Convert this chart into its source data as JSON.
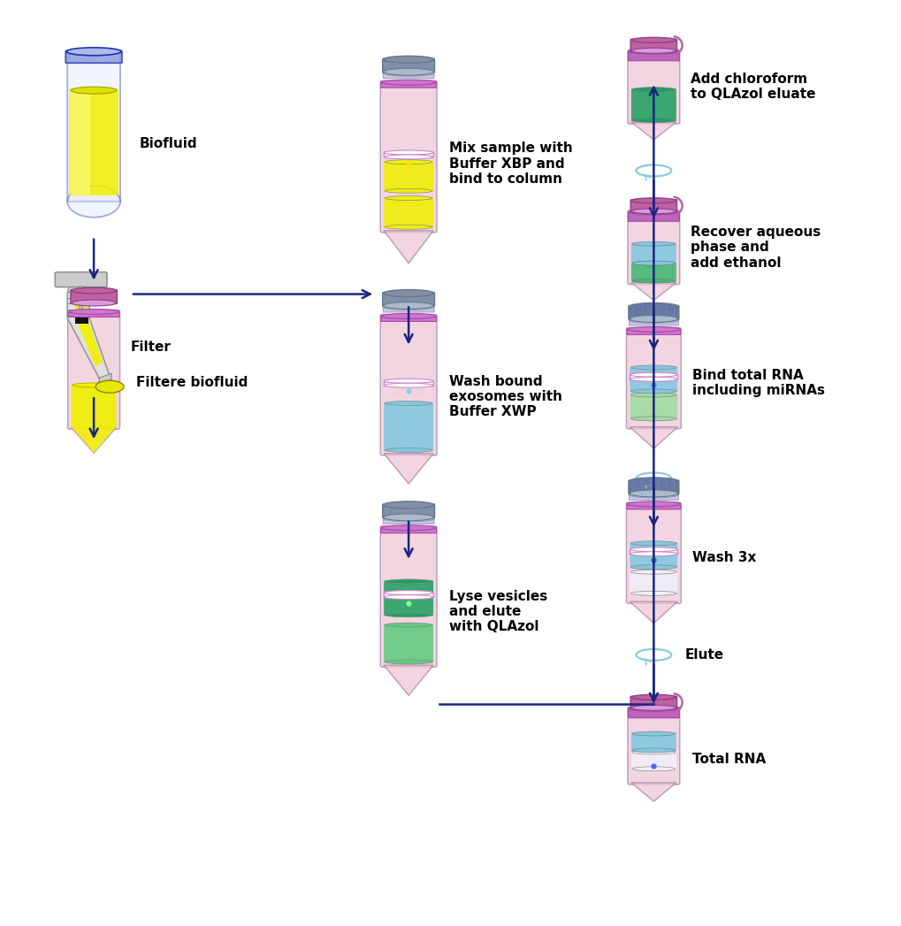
{
  "bg_color": "#ffffff",
  "arrow_color": "#1a2580",
  "tube_pink_body": "#f0c8d8",
  "tube_cap_purple": "#c060a0",
  "tube_cap_gray": "#8090a8",
  "liquid_yellow": "#f0f000",
  "liquid_blue": "#80c8e0",
  "liquid_green_dark": "#20a060",
  "liquid_green_light": "#60cc80",
  "liquid_green_mid": "#40b870",
  "liquid_lightgreen": "#a0dda0",
  "centrifuge_color": "#90ccd8",
  "labels": {
    "biofluid": "Biofluid",
    "filter": "Filter",
    "filtered_biofluid": "Filtere biofluid",
    "mix_sample": "Mix sample with\nBuffer XBP and\nbind to column",
    "wash_exosomes": "Wash bound\nexosomes with\nBuffer XWP",
    "lyse_vesicles": "Lyse vesicles\nand elute\nwith QLAzol",
    "add_chloroform": "Add chloroform\nto QLAzol eluate",
    "recover_aqueous": "Recover aqueous\nphase and\nadd ethanol",
    "bind_rna": "Bind total RNA\nincluding miRNAs",
    "wash_3x": "Wash 3x",
    "elute": "Elute",
    "total_rna": "Total RNA"
  },
  "font_size": 11,
  "font_weight": "bold"
}
